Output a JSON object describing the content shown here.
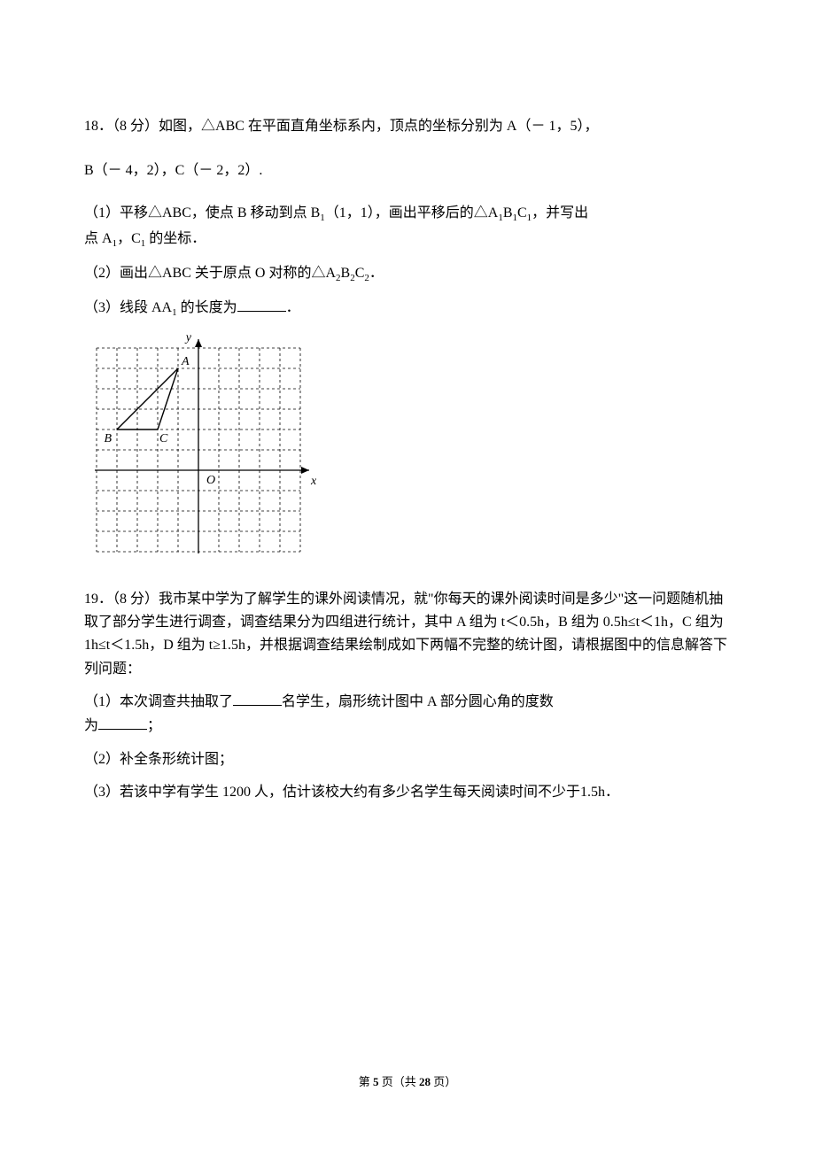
{
  "q18": {
    "number": "18．",
    "points": "（8 分）",
    "stem1": "如图，△ABC 在平面直角坐标系内，顶点的坐标分别为 A（－ 1，5），",
    "stem2": "B（－ 4，2），C（－ 2，2）.",
    "sub1a": "（1）平移△ABC，使点 B 移动到点 B",
    "sub1b": "（1，1），画出平移后的△A",
    "sub1c": "B",
    "sub1d": "C",
    "sub1e": "，并写出",
    "sub1f": "点 A",
    "sub1g": "，C",
    "sub1h": " 的坐标．",
    "sub2a": "（2）画出△ABC 关于原点 O 对称的△A",
    "sub2b": "B",
    "sub2c": "C",
    "sub2d": "．",
    "sub3a": "（3）线段 AA",
    "sub3b": " 的长度为",
    "sub3c": "．",
    "subscript1": "1",
    "subscript2": "2"
  },
  "q19": {
    "number": "19．",
    "points": "（8 分）",
    "stem": "我市某中学为了解学生的课外阅读情况，就\"你每天的课外阅读时间是多少\"这一问题随机抽取了部分学生进行调查，调查结果分为四组进行统计，其中 A 组为 t＜0.5h，B 组为 0.5h≤t＜1h，C 组为 1h≤t＜1.5h，D 组为 t≥1.5h，并根据调查结果绘制成如下两幅不完整的统计图，请根据图中的信息解答下列问题：",
    "sub1a": "（1）本次调查共抽取了",
    "sub1b": "名学生，扇形统计图中 A 部分圆心角的度数",
    "sub1c": "为",
    "sub1d": "；",
    "sub2": "（2）补全条形统计图；",
    "sub3": "（3）若该中学有学生 1200 人，估计该校大约有多少名学生每天阅读时间不少于1.5h．"
  },
  "figure18": {
    "y_label": "y",
    "x_label": "x",
    "origin_label": "O",
    "A_label": "A",
    "B_label": "B",
    "C_label": "C",
    "A": [
      -1,
      5
    ],
    "B": [
      -4,
      2
    ],
    "C": [
      -2,
      2
    ],
    "xrange": [
      -5,
      5
    ],
    "yrange": [
      -4,
      6
    ],
    "cell": 23,
    "grid_color": "#000000",
    "axis_color": "#000000",
    "line_color": "#000000",
    "dash": "3,3"
  },
  "footer": {
    "prefix": "第 ",
    "page": "5",
    "mid": " 页（共 ",
    "total": "28",
    "suffix": " 页）"
  }
}
